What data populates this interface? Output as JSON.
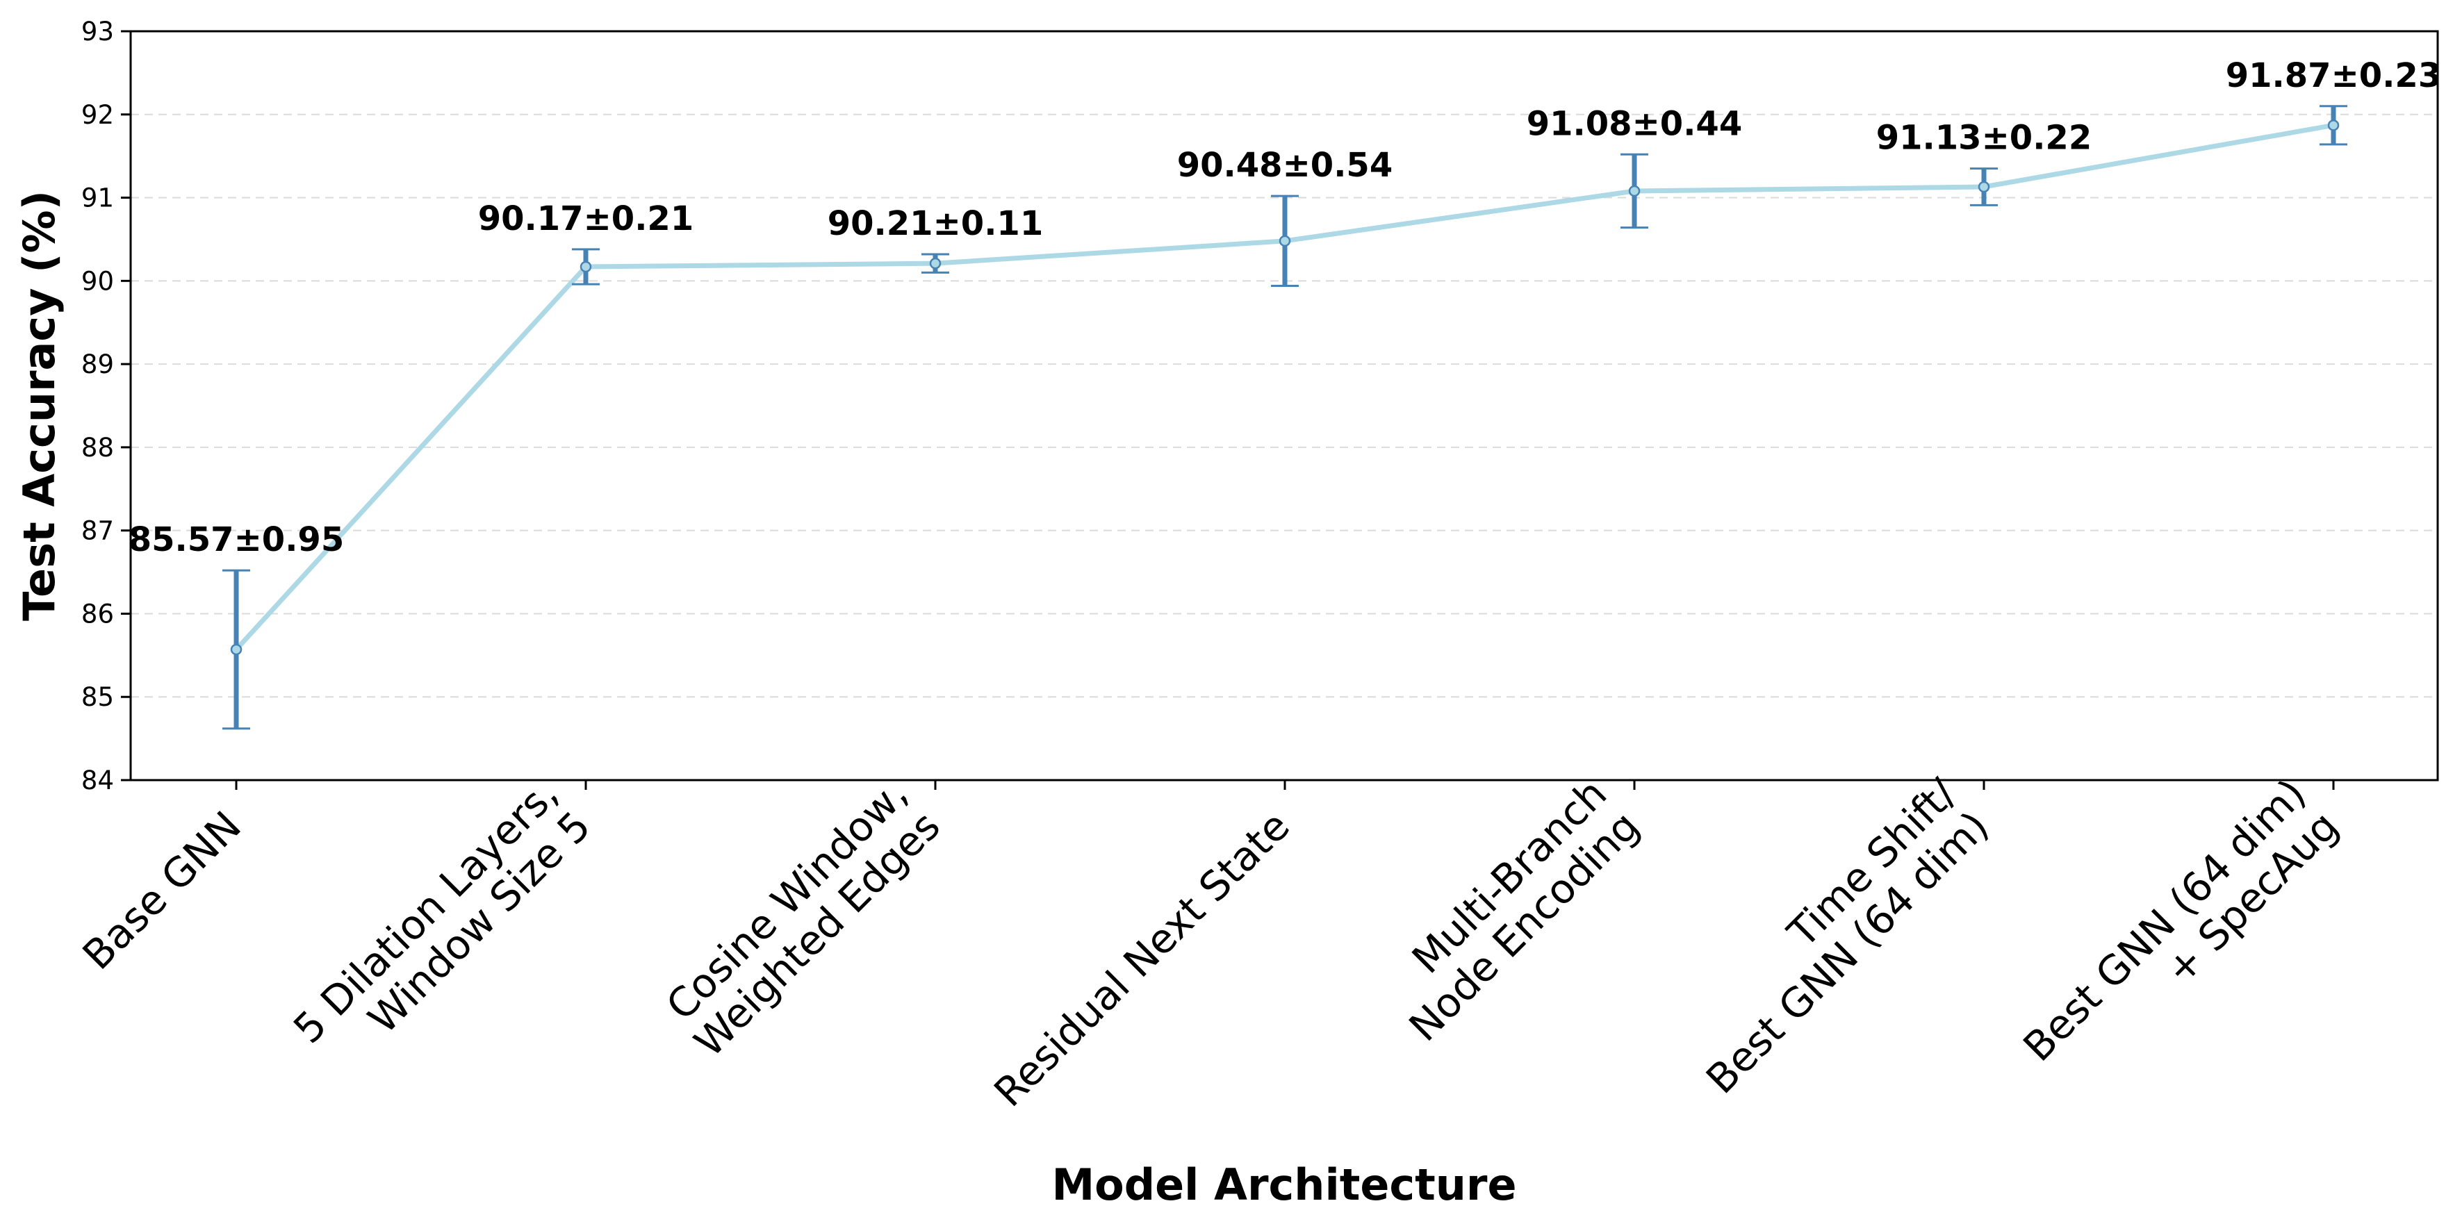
{
  "chart_data": {
    "type": "line",
    "title": "",
    "xlabel": "Model Architecture",
    "ylabel": "Test Accuracy (%)",
    "ylim": [
      84,
      93
    ],
    "yticks": [
      "84",
      "85",
      "86",
      "87",
      "88",
      "89",
      "90",
      "91",
      "92",
      "93"
    ],
    "grid": "horizontal-dashed",
    "categories": [
      [
        "Base GNN"
      ],
      [
        "5 Dilation Layers,",
        "Window Size 5"
      ],
      [
        "Cosine Window,",
        "Weighted Edges"
      ],
      [
        "Residual Next State"
      ],
      [
        "Multi-Branch",
        "Node Encoding"
      ],
      [
        "Time Shift/",
        "Best GNN (64 dim)"
      ],
      [
        "Best GNN (64 dim)",
        "+ SpecAug"
      ]
    ],
    "series": [
      {
        "values": [
          85.57,
          90.17,
          90.21,
          90.48,
          91.08,
          91.13,
          91.87
        ],
        "errors": [
          0.95,
          0.21,
          0.11,
          0.54,
          0.44,
          0.22,
          0.23
        ],
        "labels": [
          "85.57±0.95",
          "90.17±0.21",
          "90.21±0.11",
          "90.48±0.54",
          "91.08±0.44",
          "91.13±0.22",
          "91.87±0.23"
        ]
      }
    ],
    "colors": {
      "line": "#add8e6",
      "errorbar": "#4682b4",
      "grid": "#cccccc"
    }
  }
}
